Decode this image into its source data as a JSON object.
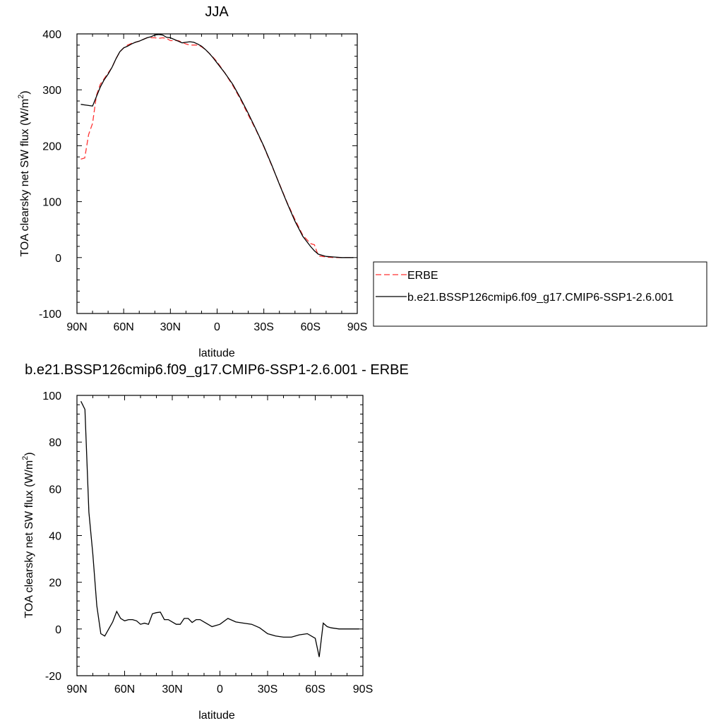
{
  "chart_data": [
    {
      "type": "line",
      "title": "JJA",
      "xlabel": "latitude",
      "ylabel_main": "TOA clearsky net SW flux (W/m",
      "ylabel_sup": "2",
      "ylabel_close": ")",
      "xlim": [
        90,
        -90
      ],
      "ylim": [
        -100,
        400
      ],
      "x_ticks": [
        90,
        60,
        30,
        0,
        -30,
        -60,
        -90
      ],
      "x_tick_labels": [
        "90N",
        "60N",
        "30N",
        "0",
        "30S",
        "60S",
        "90S"
      ],
      "y_ticks": [
        -100,
        0,
        100,
        200,
        300,
        400
      ],
      "y_tick_labels": [
        "-100",
        "0",
        "100",
        "200",
        "300",
        "400"
      ],
      "legend_position": "right",
      "series": [
        {
          "name": "ERBE",
          "color": "#ff3333",
          "dash": "dashed",
          "x": [
            87.5,
            85,
            82.5,
            80,
            77.5,
            75,
            72.5,
            70,
            67.5,
            65,
            62.5,
            60,
            57.5,
            55,
            52.5,
            50,
            47.5,
            45,
            42.5,
            40,
            37.5,
            35,
            32.5,
            30,
            27.5,
            25,
            22.5,
            20,
            17.5,
            15,
            12.5,
            10,
            7.5,
            5,
            2.5,
            0,
            -5,
            -10,
            -15,
            -20,
            -25,
            -30,
            -35,
            -40,
            -45,
            -50,
            -55,
            -60,
            -62.5,
            -65,
            -67.5,
            -70,
            -75,
            -80,
            -85,
            -87.5
          ],
          "y": [
            176,
            178,
            220,
            240,
            290,
            310,
            320,
            330,
            340,
            355,
            368,
            375,
            380,
            383,
            385,
            387,
            390,
            393,
            393,
            393,
            392,
            393,
            392,
            388,
            388,
            388,
            385,
            382,
            380,
            380,
            380,
            377,
            372,
            365,
            358,
            350,
            330,
            308,
            283,
            255,
            228,
            198,
            165,
            132,
            98,
            68,
            40,
            25,
            23,
            3,
            2,
            1,
            0,
            0,
            0,
            0
          ]
        },
        {
          "name": "b.e21.BSSP126cmip6.f09_g17.CMIP6-SSP1-2.6.001",
          "color": "#000000",
          "dash": "solid",
          "x": [
            87.5,
            85,
            82.5,
            80,
            77.5,
            75,
            72.5,
            70,
            67.5,
            65,
            62.5,
            60,
            57.5,
            55,
            52.5,
            50,
            47.5,
            45,
            42.5,
            40,
            37.5,
            35,
            32.5,
            30,
            27.5,
            25,
            22.5,
            20,
            17.5,
            15,
            12.5,
            10,
            7.5,
            5,
            2.5,
            0,
            -5,
            -10,
            -15,
            -20,
            -25,
            -30,
            -35,
            -40,
            -45,
            -50,
            -55,
            -60,
            -62.5,
            -65,
            -67.5,
            -70,
            -75,
            -80,
            -85,
            -87.5
          ],
          "y": [
            274,
            273,
            272,
            271,
            288,
            305,
            318,
            328,
            340,
            355,
            368,
            375,
            378,
            382,
            385,
            387,
            390,
            393,
            395,
            398,
            399,
            398,
            394,
            393,
            390,
            387,
            384,
            385,
            386,
            385,
            382,
            378,
            372,
            365,
            357,
            348,
            330,
            310,
            285,
            258,
            229,
            199,
            166,
            131,
            97,
            65,
            38,
            20,
            12,
            6,
            4,
            2,
            1,
            0,
            0,
            0
          ]
        }
      ]
    },
    {
      "type": "line",
      "title": "b.e21.BSSP126cmip6.f09_g17.CMIP6-SSP1-2.6.001 - ERBE",
      "xlabel": "latitude",
      "ylabel_main": "TOA clearsky net SW flux (W/m",
      "ylabel_sup": "2",
      "ylabel_close": ")",
      "xlim": [
        90,
        -90
      ],
      "ylim": [
        -20,
        100
      ],
      "x_ticks": [
        90,
        60,
        30,
        0,
        -30,
        -60,
        -90
      ],
      "x_tick_labels": [
        "90N",
        "60N",
        "30N",
        "0",
        "30S",
        "60S",
        "90S"
      ],
      "y_ticks": [
        -20,
        0,
        20,
        40,
        60,
        80,
        100
      ],
      "y_tick_labels": [
        "-20",
        "0",
        "20",
        "40",
        "60",
        "80",
        "100"
      ],
      "series": [
        {
          "color": "#000000",
          "dash": "solid",
          "x": [
            87.5,
            85,
            82.5,
            80,
            77.5,
            75,
            72.5,
            70,
            67.5,
            65,
            62.5,
            60,
            57.5,
            55,
            52.5,
            50,
            47.5,
            45,
            42.5,
            40,
            37.5,
            35,
            32.5,
            30,
            27.5,
            25,
            22.5,
            20,
            17.5,
            15,
            12.5,
            10,
            7.5,
            5,
            2.5,
            0,
            -5,
            -10,
            -15,
            -20,
            -25,
            -30,
            -35,
            -40,
            -45,
            -50,
            -55,
            -60,
            -62.5,
            -65,
            -67.5,
            -70,
            -75,
            -80,
            -85,
            -87.5
          ],
          "y": [
            97.5,
            94,
            50,
            32,
            10,
            -2,
            -3,
            0,
            3,
            7.5,
            4.5,
            3.5,
            4,
            4,
            3.5,
            2,
            2.5,
            2,
            6.5,
            7,
            7.2,
            4,
            4,
            3,
            2,
            2,
            4.5,
            4.5,
            2.8,
            4,
            4,
            3,
            2,
            1,
            1.5,
            2,
            4.5,
            3,
            2.5,
            2,
            0.5,
            -2,
            -3,
            -3.5,
            -3.5,
            -2.5,
            -2,
            -4,
            -12,
            2.5,
            1,
            0.5,
            0,
            0,
            0,
            0
          ]
        }
      ]
    }
  ]
}
